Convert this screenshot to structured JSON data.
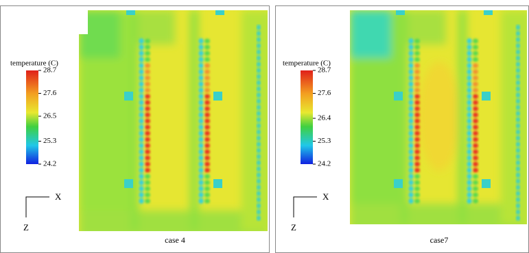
{
  "panels": [
    {
      "legend_title": "temperature (C)",
      "ticks": [
        28.7,
        27.6,
        26.5,
        25.3,
        24.2
      ],
      "axis_x": "X",
      "axis_z": "Z",
      "caption": "case 4"
    },
    {
      "legend_title": "temperature (C)",
      "ticks": [
        28.7,
        27.6,
        26.4,
        25.3,
        24.2
      ],
      "axis_x": "X",
      "axis_z": "Z",
      "caption": "case7"
    }
  ]
}
